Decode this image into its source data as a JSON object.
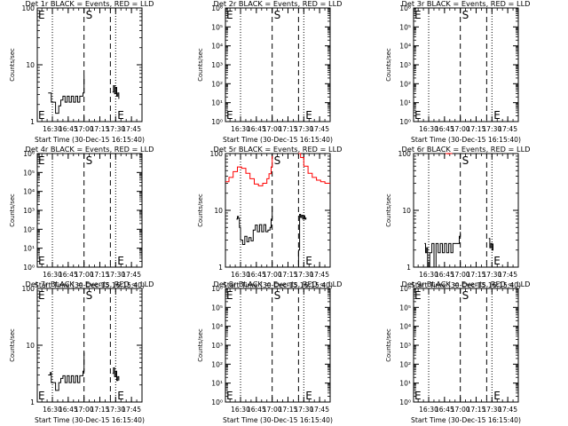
{
  "chart_data": [
    {
      "type": "line",
      "title": "Det 1r BLACK = Events, RED = LLD",
      "ylabel": "Counts/sec",
      "xlabel": "Start Time (30-Dec-15 16:15:40)",
      "yscale": "log",
      "ylim": [
        1,
        100
      ],
      "ytick_labels": [
        "1",
        "10",
        "100"
      ],
      "xlim": [
        "16:15:40",
        "17:55"
      ],
      "xtick_labels": [
        "16:30",
        "16:45",
        "17:00",
        "17:15",
        "17:30",
        "17:45"
      ],
      "grid": false,
      "markers": [
        {
          "type": "dotted",
          "time": "16:30"
        },
        {
          "type": "dashed",
          "time": "17:00",
          "label": "S"
        },
        {
          "type": "dashed",
          "time": "17:25"
        },
        {
          "type": "dotted",
          "time": "17:30",
          "label": "E"
        }
      ],
      "edge_labels": [
        "E"
      ],
      "series": [
        {
          "color": "#000000",
          "x": [
            "16:26",
            "16:28",
            "16:29",
            "16:31",
            "16:33",
            "16:35",
            "16:36",
            "16:38",
            "16:40",
            "16:42",
            "16:44",
            "16:46",
            "16:48",
            "16:50",
            "16:52",
            "16:54",
            "16:56",
            "16:58",
            "16:59",
            "17:00"
          ],
          "y": [
            3.2,
            3.2,
            2.2,
            2.2,
            1.4,
            1.4,
            1.9,
            2.4,
            2.8,
            2.2,
            2.8,
            2.2,
            2.8,
            2.2,
            2.8,
            2.2,
            2.8,
            2.8,
            3.2,
            6.5
          ]
        },
        {
          "color": "#000000",
          "x": [
            "17:27",
            "17:28",
            "17:29",
            "17:30",
            "17:31",
            "17:32",
            "17:33"
          ],
          "y": [
            3.3,
            4.3,
            3.1,
            4.0,
            2.8,
            3.2,
            2.5
          ]
        }
      ]
    },
    {
      "type": "line",
      "title": "Det 2r BLACK = Events, RED = LLD",
      "ylabel": "Counts/sec",
      "xlabel": "Start Time (30-Dec-15 16:15:40)",
      "yscale": "log",
      "ylim": [
        1,
        1000000
      ],
      "ytick_labels": [
        "10⁰",
        "10¹",
        "10²",
        "10³",
        "10⁴",
        "10⁵",
        "10⁶"
      ],
      "xlim": [
        "16:15:40",
        "17:55"
      ],
      "xtick_labels": [
        "16:30",
        "16:45",
        "17:00",
        "17:15",
        "17:30",
        "17:45"
      ],
      "grid": false,
      "markers": [
        {
          "type": "dotted",
          "time": "16:30"
        },
        {
          "type": "dashed",
          "time": "17:00",
          "label": "S"
        },
        {
          "type": "dashed",
          "time": "17:25"
        },
        {
          "type": "dotted",
          "time": "17:30",
          "label": "E"
        }
      ],
      "edge_labels": [
        "E"
      ],
      "series": []
    },
    {
      "type": "line",
      "title": "Det 3r BLACK = Events, RED = LLD",
      "ylabel": "Counts/sec",
      "xlabel": "Start Time (30-Dec-15 16:15:40)",
      "yscale": "log",
      "ylim": [
        1,
        1000000
      ],
      "ytick_labels": [
        "10⁰",
        "10¹",
        "10²",
        "10³",
        "10⁴",
        "10⁵",
        "10⁶"
      ],
      "xlim": [
        "16:15:40",
        "17:55"
      ],
      "xtick_labels": [
        "16:30",
        "16:45",
        "17:00",
        "17:15",
        "17:30",
        "17:45"
      ],
      "grid": false,
      "markers": [
        {
          "type": "dotted",
          "time": "16:30"
        },
        {
          "type": "dashed",
          "time": "17:00",
          "label": "S"
        },
        {
          "type": "dashed",
          "time": "17:25"
        },
        {
          "type": "dotted",
          "time": "17:30",
          "label": "E"
        }
      ],
      "edge_labels": [
        "E"
      ],
      "series": []
    },
    {
      "type": "line",
      "title": "Det 4r BLACK = Events, RED = LLD",
      "ylabel": "Counts/sec",
      "xlabel": "Start Time (30-Dec-15 16:15:40)",
      "yscale": "log",
      "ylim": [
        1,
        1000000
      ],
      "ytick_labels": [
        "10⁰",
        "10¹",
        "10²",
        "10³",
        "10⁴",
        "10⁵",
        "10⁶"
      ],
      "xlim": [
        "16:15:40",
        "17:55"
      ],
      "xtick_labels": [
        "16:30",
        "16:45",
        "17:00",
        "17:15",
        "17:30",
        "17:45"
      ],
      "grid": false,
      "markers": [
        {
          "type": "dotted",
          "time": "16:30"
        },
        {
          "type": "dashed",
          "time": "17:00",
          "label": "S"
        },
        {
          "type": "dashed",
          "time": "17:25"
        },
        {
          "type": "dotted",
          "time": "17:30",
          "label": "E"
        }
      ],
      "edge_labels": [
        "E"
      ],
      "series": []
    },
    {
      "type": "line",
      "title": "Det 5r BLACK = Events, RED = LLD",
      "ylabel": "Counts/sec",
      "xlabel": "Start Time (30-Dec-15 16:15:40)",
      "yscale": "log",
      "ylim": [
        1,
        100
      ],
      "ytick_labels": [
        "1",
        "10",
        "100"
      ],
      "xlim": [
        "16:15:40",
        "17:55"
      ],
      "xtick_labels": [
        "16:30",
        "16:45",
        "17:00",
        "17:15",
        "17:30",
        "17:45"
      ],
      "grid": false,
      "markers": [
        {
          "type": "dotted",
          "time": "16:30"
        },
        {
          "type": "dashed",
          "time": "17:00",
          "label": "S"
        },
        {
          "type": "dashed",
          "time": "17:25"
        },
        {
          "type": "dotted",
          "time": "17:30",
          "label": "E"
        }
      ],
      "edge_labels": [],
      "series": [
        {
          "color": "#ff0000",
          "x": [
            "16:15:40",
            "16:19",
            "16:23",
            "16:27",
            "16:31",
            "16:35",
            "16:39",
            "16:43",
            "16:47",
            "16:51",
            "16:55",
            "16:57",
            "16:59",
            "17:00"
          ],
          "y": [
            32,
            38,
            48,
            58,
            55,
            45,
            36,
            29,
            27,
            30,
            36,
            44,
            58,
            90
          ]
        },
        {
          "color": "#ff0000",
          "x": [
            "17:25",
            "17:27",
            "17:30",
            "17:34",
            "17:38",
            "17:42",
            "17:46",
            "17:50",
            "17:55"
          ],
          "y": [
            100,
            85,
            60,
            45,
            38,
            34,
            32,
            30,
            30
          ]
        },
        {
          "color": "#000000",
          "x": [
            "16:26",
            "16:27",
            "16:28",
            "16:29",
            "16:30",
            "16:32",
            "16:34",
            "16:36",
            "16:38",
            "16:40",
            "16:42",
            "16:44",
            "16:46",
            "16:48",
            "16:50",
            "16:52",
            "16:54",
            "16:56",
            "16:58",
            "16:59",
            "17:00"
          ],
          "y": [
            7.0,
            7.8,
            7.2,
            5.0,
            3.0,
            2.5,
            3.5,
            2.8,
            3.3,
            2.9,
            4.5,
            5.5,
            4.2,
            5.6,
            4.2,
            5.6,
            4.2,
            4.5,
            5.0,
            7.0,
            12
          ]
        },
        {
          "color": "#000000",
          "x": [
            "17:24",
            "17:25",
            "17:26",
            "17:27",
            "17:28",
            "17:29",
            "17:30",
            "17:31",
            "17:32"
          ],
          "y": [
            1.0,
            2.0,
            8.5,
            7.5,
            8.2,
            7.0,
            8.0,
            7.0,
            7.5
          ]
        }
      ]
    },
    {
      "type": "line",
      "title": "Det 6r BLACK = Events, RED = LLD",
      "ylabel": "Counts/sec",
      "xlabel": "Start Time (30-Dec-15 16:15:40)",
      "yscale": "log",
      "ylim": [
        1,
        100
      ],
      "ytick_labels": [
        "1",
        "10",
        "100"
      ],
      "xlim": [
        "16:15:40",
        "17:55"
      ],
      "xtick_labels": [
        "16:30",
        "16:45",
        "17:00",
        "17:15",
        "17:30",
        "17:45"
      ],
      "grid": false,
      "markers": [
        {
          "type": "dotted",
          "time": "16:30"
        },
        {
          "type": "dashed",
          "time": "17:00",
          "label": "S"
        },
        {
          "type": "dashed",
          "time": "17:25"
        },
        {
          "type": "dotted",
          "time": "17:30",
          "label": "E"
        }
      ],
      "edge_labels": [],
      "series": [
        {
          "color": "#ff0000",
          "x": [
            "16:46",
            "16:48",
            "16:50",
            "16:52"
          ],
          "y": [
            100,
            99,
            100,
            99
          ]
        },
        {
          "color": "#000000",
          "x": [
            "16:26",
            "16:27",
            "16:28",
            "16:29",
            "16:31",
            "16:33",
            "16:35",
            "16:37",
            "16:39",
            "16:41",
            "16:43",
            "16:45",
            "16:47",
            "16:49",
            "16:51",
            "16:53",
            "16:55",
            "16:57",
            "16:59",
            "17:00"
          ],
          "y": [
            2.6,
            1.8,
            2.2,
            1.0,
            1.8,
            2.6,
            1.0,
            2.6,
            1.8,
            2.6,
            1.8,
            2.6,
            1.8,
            2.6,
            1.8,
            2.6,
            2.6,
            2.6,
            3.5,
            4.2
          ]
        },
        {
          "color": "#000000",
          "x": [
            "17:27",
            "17:28",
            "17:29",
            "17:30",
            "17:31"
          ],
          "y": [
            3.2,
            2.2,
            2.6,
            2.0,
            2.6
          ]
        }
      ]
    },
    {
      "type": "line",
      "title": "Det 7r BLACK = Events, RED = LLD",
      "ylabel": "Counts/sec",
      "xlabel": "Start Time (30-Dec-15 16:15:40)",
      "yscale": "log",
      "ylim": [
        1,
        100
      ],
      "ytick_labels": [
        "1",
        "10",
        "100"
      ],
      "xlim": [
        "16:15:40",
        "17:55"
      ],
      "xtick_labels": [
        "16:30",
        "16:45",
        "17:00",
        "17:15",
        "17:30",
        "17:45"
      ],
      "grid": false,
      "markers": [
        {
          "type": "dotted",
          "time": "16:30"
        },
        {
          "type": "dashed",
          "time": "17:00",
          "label": "S"
        },
        {
          "type": "dashed",
          "time": "17:25"
        },
        {
          "type": "dotted",
          "time": "17:30",
          "label": "E"
        }
      ],
      "edge_labels": [
        "E"
      ],
      "series": [
        {
          "color": "#000000",
          "x": [
            "16:26",
            "16:28",
            "16:29",
            "16:31",
            "16:33",
            "16:35",
            "16:36",
            "16:38",
            "16:40",
            "16:42",
            "16:44",
            "16:46",
            "16:48",
            "16:50",
            "16:52",
            "16:54",
            "16:56",
            "16:58",
            "16:59",
            "17:00"
          ],
          "y": [
            3.0,
            3.3,
            2.2,
            2.2,
            1.6,
            1.6,
            2.2,
            2.6,
            2.9,
            2.2,
            2.9,
            2.2,
            2.9,
            2.2,
            2.9,
            2.2,
            2.9,
            2.9,
            3.5,
            7.5
          ]
        },
        {
          "color": "#000000",
          "x": [
            "17:27",
            "17:28",
            "17:29",
            "17:30",
            "17:31",
            "17:32",
            "17:33"
          ],
          "y": [
            3.2,
            4.0,
            2.8,
            3.5,
            2.4,
            2.8,
            2.4
          ]
        }
      ]
    },
    {
      "type": "line",
      "title": "Det 8r BLACK = Events, RED = LLD",
      "ylabel": "Counts/sec",
      "xlabel": "Start Time (30-Dec-15 16:15:40)",
      "yscale": "log",
      "ylim": [
        1,
        1000000
      ],
      "ytick_labels": [
        "10⁰",
        "10¹",
        "10²",
        "10³",
        "10⁴",
        "10⁵",
        "10⁶"
      ],
      "xlim": [
        "16:15:40",
        "17:55"
      ],
      "xtick_labels": [
        "16:30",
        "16:45",
        "17:00",
        "17:15",
        "17:30",
        "17:45"
      ],
      "grid": false,
      "markers": [
        {
          "type": "dotted",
          "time": "16:30"
        },
        {
          "type": "dashed",
          "time": "17:00",
          "label": "S"
        },
        {
          "type": "dashed",
          "time": "17:25"
        },
        {
          "type": "dotted",
          "time": "17:30",
          "label": "E"
        }
      ],
      "edge_labels": [
        "E"
      ],
      "series": []
    },
    {
      "type": "line",
      "title": "Det 9r BLACK = Events, RED = LLD",
      "ylabel": "Counts/sec",
      "xlabel": "Start Time (30-Dec-15 16:15:40)",
      "yscale": "log",
      "ylim": [
        1,
        1000000
      ],
      "ytick_labels": [
        "10⁰",
        "10¹",
        "10²",
        "10³",
        "10⁴",
        "10⁵",
        "10⁶"
      ],
      "xlim": [
        "16:15:40",
        "17:55"
      ],
      "xtick_labels": [
        "16:30",
        "16:45",
        "17:00",
        "17:15",
        "17:30",
        "17:45"
      ],
      "grid": false,
      "markers": [
        {
          "type": "dotted",
          "time": "16:30"
        },
        {
          "type": "dashed",
          "time": "17:00",
          "label": "S"
        },
        {
          "type": "dashed",
          "time": "17:25"
        },
        {
          "type": "dotted",
          "time": "17:30",
          "label": "E"
        }
      ],
      "edge_labels": [
        "E"
      ],
      "series": []
    }
  ]
}
